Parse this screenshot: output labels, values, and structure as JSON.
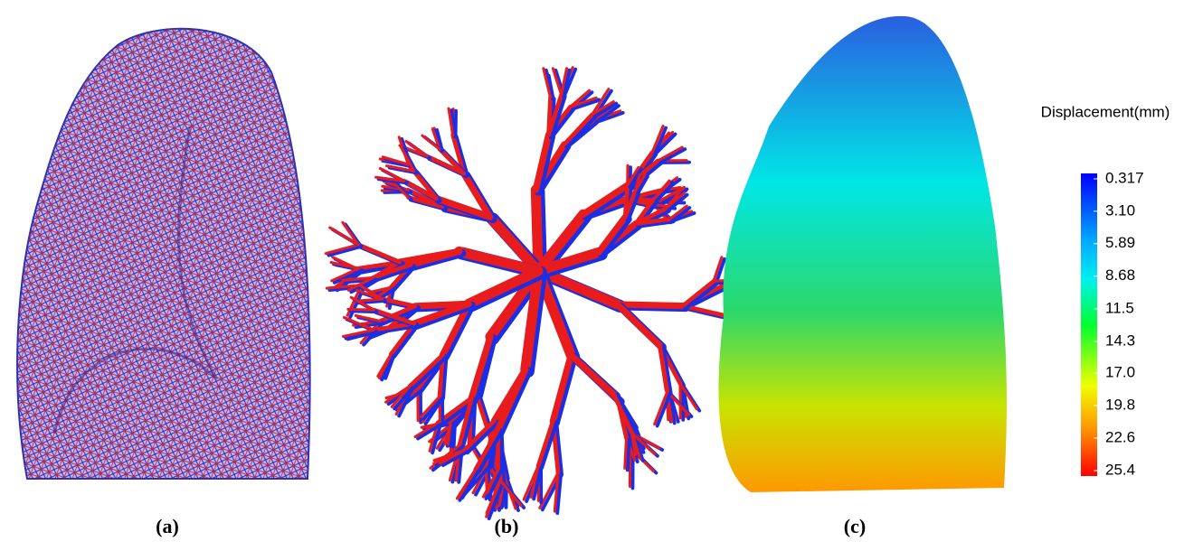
{
  "panels": [
    {
      "label": "(a)"
    },
    {
      "label": "(b)"
    },
    {
      "label": "(c)"
    }
  ],
  "colorbar": {
    "title": "Displacement(mm)",
    "ticks": [
      0.317,
      {
        "value": 3.1,
        "label": "3.10"
      },
      5.89,
      8.68,
      11.5,
      14.3,
      {
        "value": 17,
        "label": "17.0"
      },
      19.8,
      22.6,
      25.4
    ]
  }
}
